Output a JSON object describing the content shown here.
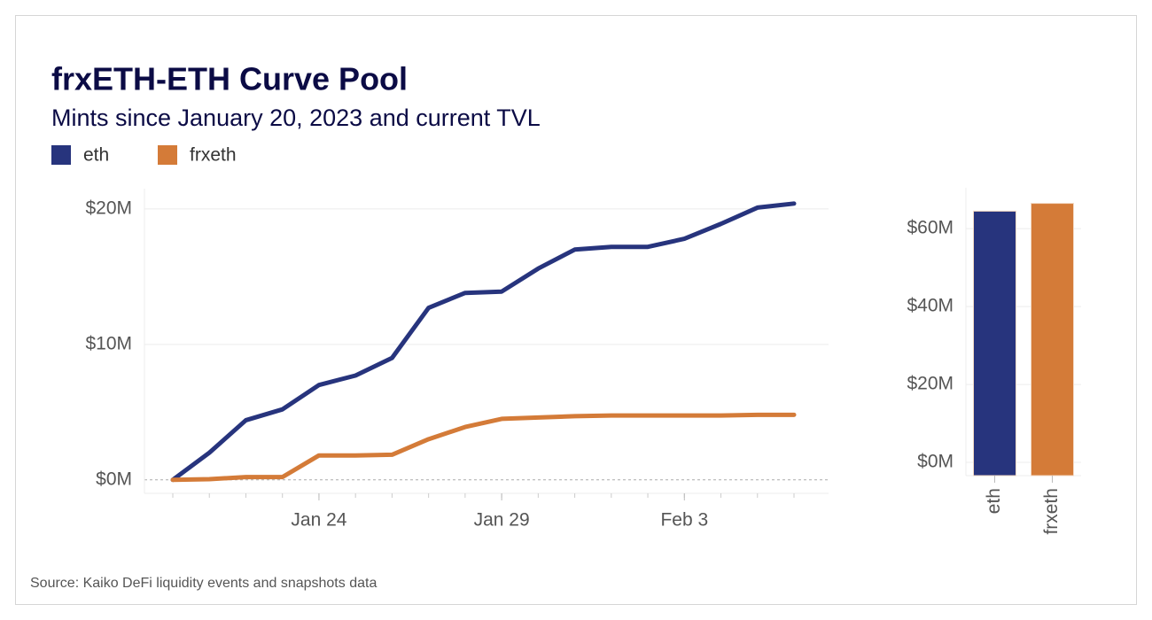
{
  "chart_data": [
    {
      "type": "line",
      "title": "frxETH-ETH Curve Pool",
      "subtitle": "Mints since January 20, 2023 and current TVL",
      "source": "Source: Kaiko DeFi liquidity events and snapshots data",
      "x": [
        "Jan 20",
        "Jan 21",
        "Jan 22",
        "Jan 23",
        "Jan 24",
        "Jan 25",
        "Jan 26",
        "Jan 27",
        "Jan 28",
        "Jan 29",
        "Jan 30",
        "Jan 31",
        "Feb 1",
        "Feb 2",
        "Feb 3",
        "Feb 4",
        "Feb 5",
        "Feb 6"
      ],
      "xticks": [
        "Jan 24",
        "Jan 29",
        "Feb 3"
      ],
      "series": [
        {
          "name": "eth",
          "color": "#27347d",
          "values": [
            0,
            2.0,
            4.4,
            5.2,
            7.0,
            7.7,
            9.0,
            12.7,
            13.8,
            13.9,
            15.6,
            17.0,
            17.2,
            17.2,
            17.8,
            18.9,
            20.1,
            20.4
          ]
        },
        {
          "name": "frxeth",
          "color": "#d47b38",
          "values": [
            0,
            0.05,
            0.2,
            0.2,
            1.8,
            1.8,
            1.85,
            3.0,
            3.9,
            4.5,
            4.6,
            4.7,
            4.75,
            4.75,
            4.75,
            4.75,
            4.8,
            4.8
          ]
        }
      ],
      "ylim": [
        -1,
        21.5
      ],
      "yticks": [
        {
          "value": 0,
          "label": "$0M"
        },
        {
          "value": 10,
          "label": "$10M"
        },
        {
          "value": 20,
          "label": "$20M"
        }
      ],
      "grid": true
    },
    {
      "type": "bar",
      "categories": [
        "eth",
        "frxeth"
      ],
      "values": [
        64.5,
        66.5
      ],
      "colors": [
        "#27347d",
        "#d47b38"
      ],
      "ylim": [
        -3.4,
        70.5
      ],
      "yticks": [
        {
          "value": 0,
          "label": "$0M"
        },
        {
          "value": 20,
          "label": "$20M"
        },
        {
          "value": 40,
          "label": "$40M"
        },
        {
          "value": 60,
          "label": "$60M"
        }
      ],
      "grid": true
    }
  ]
}
